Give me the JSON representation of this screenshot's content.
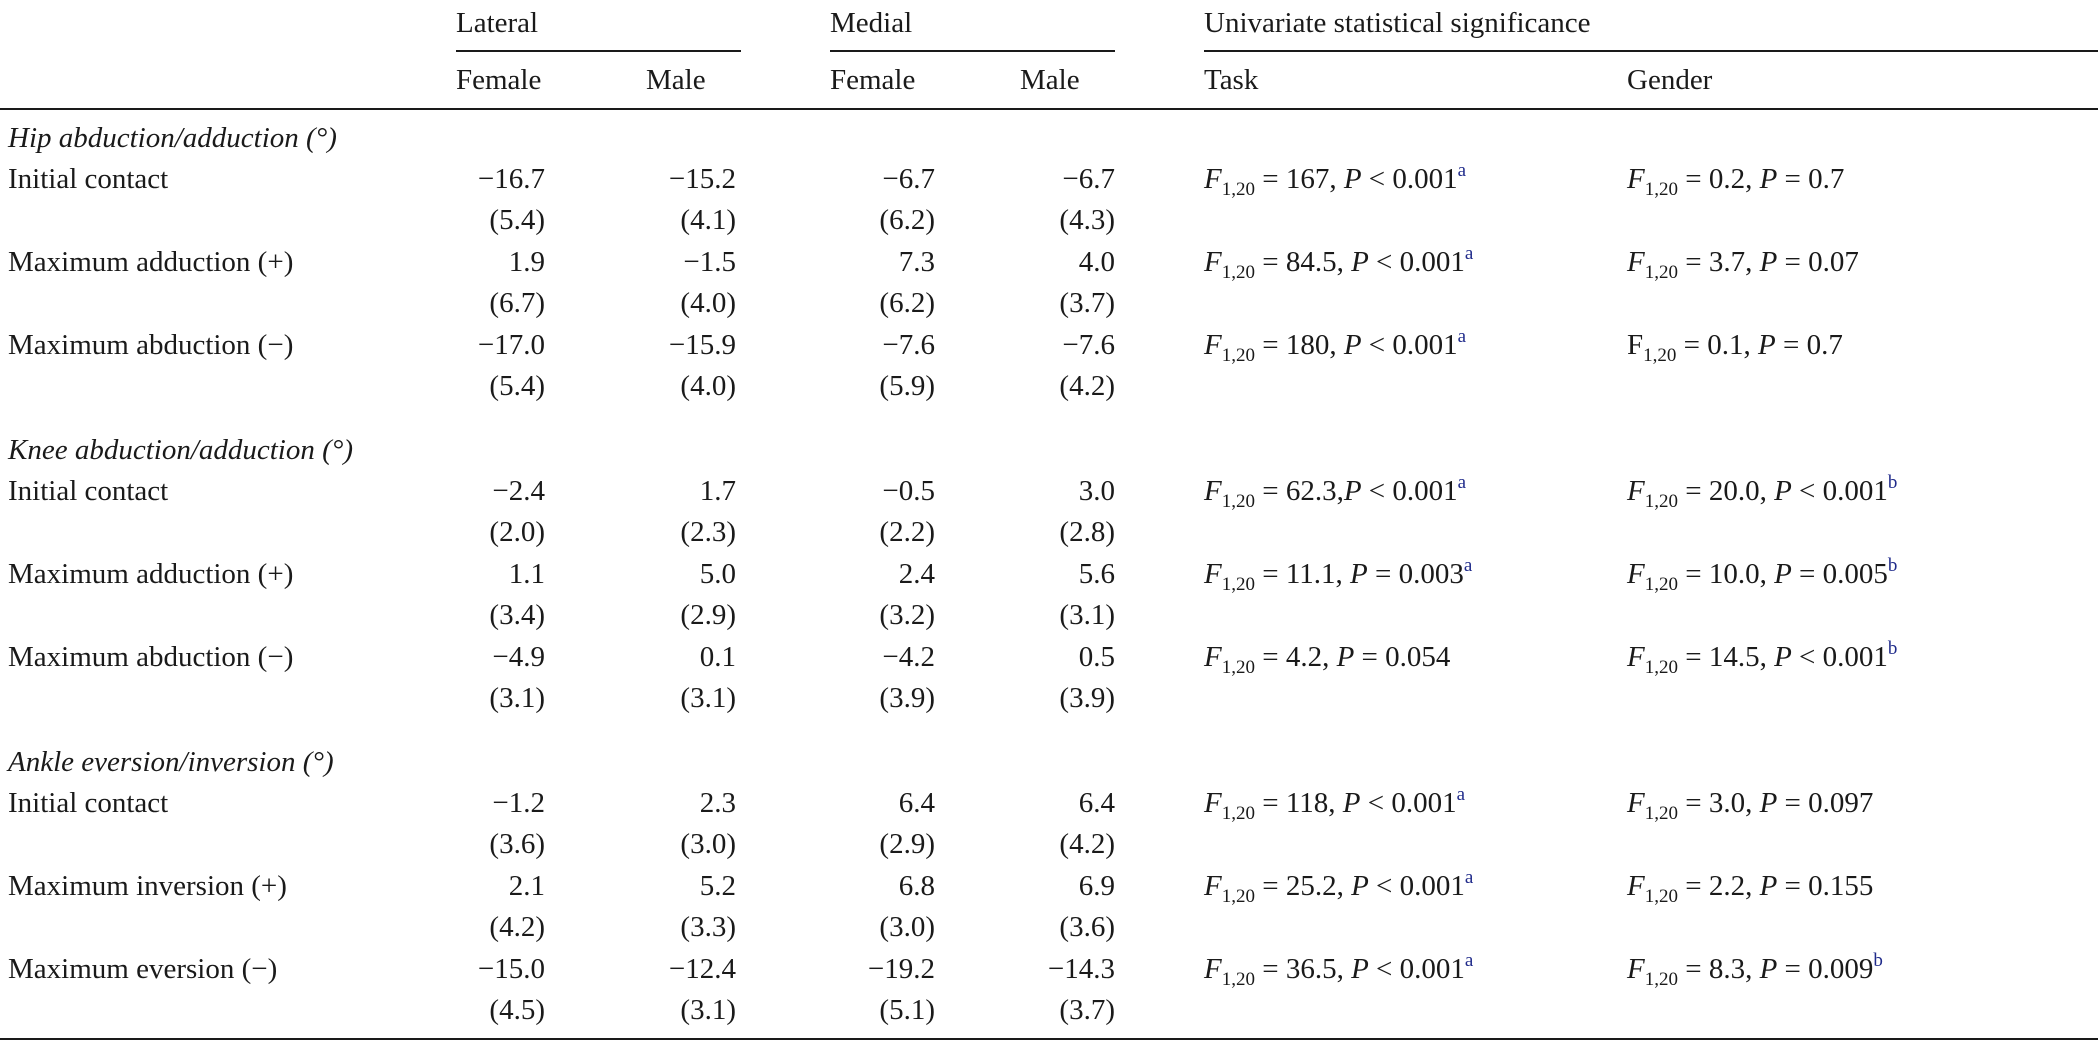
{
  "header": {
    "lateral": "Lateral",
    "medial": "Medial",
    "univariate": "Univariate statistical significance",
    "female": "Female",
    "male": "Male",
    "task": "Task",
    "gender": "Gender"
  },
  "sections": [
    {
      "title": "Hip abduction/adduction (°)",
      "rows": [
        {
          "label": "Initial contact",
          "lf": "−16.7",
          "lf_sd": "(5.4)",
          "lm": "−15.2",
          "lm_sd": "(4.1)",
          "mf": "−6.7",
          "mf_sd": "(6.2)",
          "mm": "−6.7",
          "mm_sd": "(4.3)",
          "task": {
            "F": "F",
            "sub": "1,20",
            "pre": " = 167, ",
            "P": "P",
            "post": " < 0.001",
            "sup": "a"
          },
          "gender": {
            "F": "F",
            "sub": "1,20",
            "pre": " = 0.2, ",
            "P": "P",
            "post": " = 0.7",
            "sup": ""
          }
        },
        {
          "label": "Maximum adduction (+)",
          "lf": "1.9",
          "lf_sd": "(6.7)",
          "lm": "−1.5",
          "lm_sd": "(4.0)",
          "mf": "7.3",
          "mf_sd": "(6.2)",
          "mm": "4.0",
          "mm_sd": "(3.7)",
          "task": {
            "F": "F",
            "sub": "1,20",
            "pre": " = 84.5, ",
            "P": "P",
            "post": " < 0.001",
            "sup": "a"
          },
          "gender": {
            "F": "F",
            "sub": "1,20",
            "pre": " = 3.7, ",
            "P": "P",
            "post": " = 0.07",
            "sup": ""
          }
        },
        {
          "label": "Maximum abduction (−)",
          "lf": "−17.0",
          "lf_sd": "(5.4)",
          "lm": "−15.9",
          "lm_sd": "(4.0)",
          "mf": "−7.6",
          "mf_sd": "(5.9)",
          "mm": "−7.6",
          "mm_sd": "(4.2)",
          "task": {
            "F": "F",
            "sub": "1,20",
            "pre": " = 180, ",
            "P": "P",
            "post": " < 0.001",
            "sup": "a"
          },
          "gender": {
            "F": "F",
            "sub": "1,20",
            "pre": " = 0.1, ",
            "P": "P",
            "post": " = 0.7",
            "sup": "",
            "roman": true
          }
        }
      ]
    },
    {
      "title": "Knee abduction/adduction (°)",
      "rows": [
        {
          "label": "Initial contact",
          "lf": "−2.4",
          "lf_sd": "(2.0)",
          "lm": "1.7",
          "lm_sd": "(2.3)",
          "mf": "−0.5",
          "mf_sd": "(2.2)",
          "mm": "3.0",
          "mm_sd": "(2.8)",
          "task": {
            "F": "F",
            "sub": "1,20",
            "pre": " = 62.3,",
            "P": "P",
            "post": " < 0.001",
            "sup": "a"
          },
          "gender": {
            "F": "F",
            "sub": "1,20",
            "pre": " = 20.0, ",
            "P": "P",
            "post": " < 0.001",
            "sup": "b"
          }
        },
        {
          "label": "Maximum adduction (+)",
          "lf": "1.1",
          "lf_sd": "(3.4)",
          "lm": "5.0",
          "lm_sd": "(2.9)",
          "mf": "2.4",
          "mf_sd": "(3.2)",
          "mm": "5.6",
          "mm_sd": "(3.1)",
          "task": {
            "F": "F",
            "sub": "1,20",
            "pre": " = 11.1, ",
            "P": "P",
            "post": " = 0.003",
            "sup": "a"
          },
          "gender": {
            "F": "F",
            "sub": "1,20",
            "pre": " = 10.0, ",
            "P": "P",
            "post": " = 0.005",
            "sup": "b"
          }
        },
        {
          "label": "Maximum abduction (−)",
          "lf": "−4.9",
          "lf_sd": "(3.1)",
          "lm": "0.1",
          "lm_sd": "(3.1)",
          "mf": "−4.2",
          "mf_sd": "(3.9)",
          "mm": "0.5",
          "mm_sd": "(3.9)",
          "task": {
            "F": "F",
            "sub": "1,20",
            "pre": " = 4.2, ",
            "P": "P",
            "post": " = 0.054",
            "sup": ""
          },
          "gender": {
            "F": "F",
            "sub": "1,20",
            "pre": " = 14.5, ",
            "P": "P",
            "post": " < 0.001",
            "sup": "b"
          }
        }
      ]
    },
    {
      "title": "Ankle eversion/inversion (°)",
      "rows": [
        {
          "label": "Initial contact",
          "lf": "−1.2",
          "lf_sd": "(3.6)",
          "lm": "2.3",
          "lm_sd": "(3.0)",
          "mf": "6.4",
          "mf_sd": "(2.9)",
          "mm": "6.4",
          "mm_sd": "(4.2)",
          "task": {
            "F": "F",
            "sub": "1,20",
            "pre": " = 118, ",
            "P": "P",
            "post": " < 0.001",
            "sup": "a"
          },
          "gender": {
            "F": "F",
            "sub": "1,20",
            "pre": " = 3.0, ",
            "P": "P",
            "post": " = 0.097",
            "sup": ""
          }
        },
        {
          "label": "Maximum inversion (+)",
          "lf": "2.1",
          "lf_sd": "(4.2)",
          "lm": "5.2",
          "lm_sd": "(3.3)",
          "mf": "6.8",
          "mf_sd": "(3.0)",
          "mm": "6.9",
          "mm_sd": "(3.6)",
          "task": {
            "F": "F",
            "sub": "1,20",
            "pre": " = 25.2, ",
            "P": "P",
            "post": " < 0.001",
            "sup": "a"
          },
          "gender": {
            "F": "F",
            "sub": "1,20",
            "pre": " = 2.2, ",
            "P": "P",
            "post": " = 0.155",
            "sup": ""
          }
        },
        {
          "label": "Maximum eversion (−)",
          "lf": "−15.0",
          "lf_sd": "(4.5)",
          "lm": "−12.4",
          "lm_sd": "(3.1)",
          "mf": "−19.2",
          "mf_sd": "(5.1)",
          "mm": "−14.3",
          "mm_sd": "(3.7)",
          "task": {
            "F": "F",
            "sub": "1,20",
            "pre": " = 36.5, ",
            "P": "P",
            "post": " < 0.001",
            "sup": "a"
          },
          "gender": {
            "F": "F",
            "sub": "1,20",
            "pre": " = 8.3, ",
            "P": "P",
            "post": " = 0.009",
            "sup": "b"
          }
        }
      ]
    }
  ]
}
